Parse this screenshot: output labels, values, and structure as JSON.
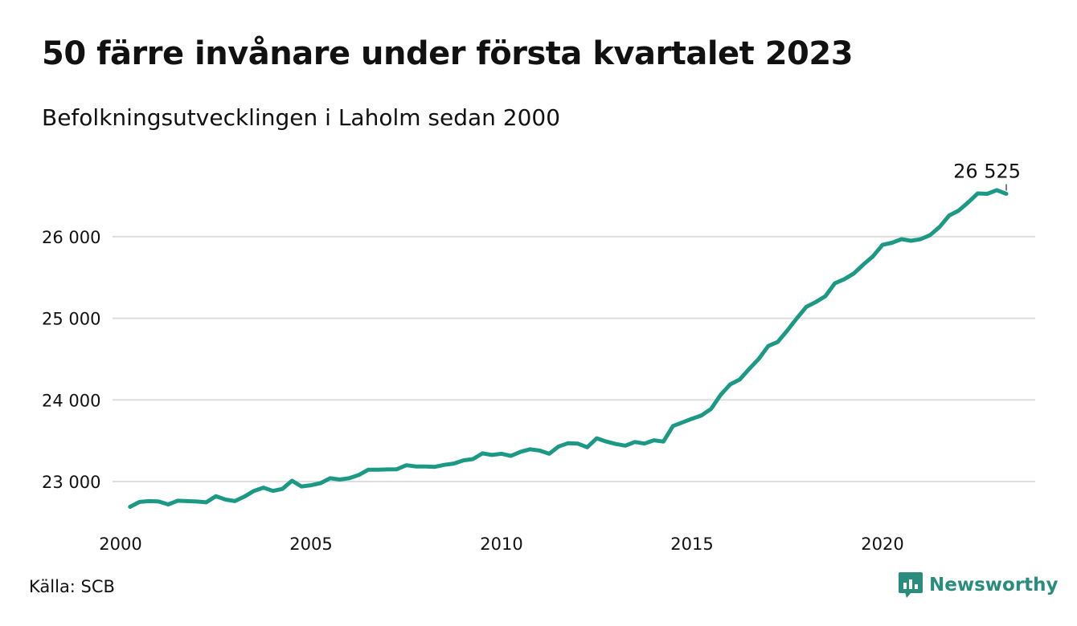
{
  "header": {
    "title": "50 färre invånare under första kvartalet 2023",
    "subtitle": "Befolkningsutvecklingen i Laholm sedan 2000"
  },
  "footer": {
    "source": "Källa: SCB",
    "brand_name": "Newsworthy",
    "brand_icon": "newsworthy-logo-icon"
  },
  "colors": {
    "line": "#1b9985",
    "grid": "#dddddd",
    "brand": "#2a8c7c"
  },
  "chart_data": {
    "type": "line",
    "title": "50 färre invånare under första kvartalet 2023",
    "subtitle": "Befolkningsutvecklingen i Laholm sedan 2000",
    "xlabel": "",
    "ylabel": "",
    "xlim": [
      2000,
      2023.25
    ],
    "ylim": [
      22500,
      26750
    ],
    "x_ticks": [
      2000,
      2005,
      2010,
      2015,
      2020
    ],
    "x_tick_labels": [
      "2000",
      "2005",
      "2010",
      "2015",
      "2020"
    ],
    "y_ticks": [
      23000,
      24000,
      25000,
      26000
    ],
    "y_tick_labels": [
      "23 000",
      "24 000",
      "25 000",
      "26 000"
    ],
    "grid": "horizontal",
    "end_label": "26 525",
    "series": [
      {
        "x": [
          2000.25,
          2000.5,
          2000.75,
          2001,
          2001.25,
          2001.5,
          2001.75,
          2002,
          2002.25,
          2002.5,
          2002.75,
          2003,
          2003.25,
          2003.5,
          2003.75,
          2004,
          2004.25,
          2004.5,
          2004.75,
          2005,
          2005.25,
          2005.5,
          2005.75,
          2006,
          2006.25,
          2006.5,
          2006.75,
          2007,
          2007.25,
          2007.5,
          2007.75,
          2008,
          2008.25,
          2008.5,
          2008.75,
          2009,
          2009.25,
          2009.5,
          2009.75,
          2010,
          2010.25,
          2010.5,
          2010.75,
          2011,
          2011.25,
          2011.5,
          2011.75,
          2012,
          2012.25,
          2012.5,
          2012.75,
          2013,
          2013.25,
          2013.5,
          2013.75,
          2014,
          2014.25,
          2014.5,
          2014.75,
          2015,
          2015.25,
          2015.5,
          2015.75,
          2016,
          2016.25,
          2016.5,
          2016.75,
          2017,
          2017.25,
          2017.5,
          2017.75,
          2018,
          2018.25,
          2018.5,
          2018.75,
          2019,
          2019.25,
          2019.5,
          2019.75,
          2020,
          2020.25,
          2020.5,
          2020.75,
          2021,
          2021.25,
          2021.5,
          2021.75,
          2022,
          2022.25,
          2022.5,
          2022.75,
          2023,
          2023.25
        ],
        "values": [
          22690,
          22750,
          22760,
          22755,
          22720,
          22765,
          22760,
          22755,
          22745,
          22820,
          22780,
          22760,
          22815,
          22885,
          22925,
          22885,
          22910,
          23010,
          22940,
          22955,
          22980,
          23040,
          23025,
          23040,
          23080,
          23145,
          23145,
          23148,
          23150,
          23200,
          23185,
          23185,
          23180,
          23205,
          23220,
          23260,
          23275,
          23345,
          23325,
          23340,
          23315,
          23365,
          23395,
          23380,
          23340,
          23430,
          23470,
          23465,
          23420,
          23530,
          23490,
          23460,
          23440,
          23485,
          23465,
          23505,
          23490,
          23680,
          23725,
          23770,
          23810,
          23890,
          24060,
          24190,
          24250,
          24380,
          24500,
          24660,
          24710,
          24850,
          25000,
          25140,
          25200,
          25270,
          25430,
          25480,
          25550,
          25660,
          25760,
          25900,
          25925,
          25970,
          25950,
          25970,
          26020,
          26120,
          26260,
          26320,
          26420,
          26530,
          26525,
          26570,
          26525
        ]
      }
    ]
  }
}
